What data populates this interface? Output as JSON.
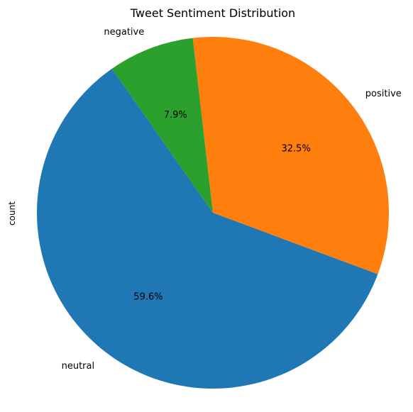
{
  "chart_data": {
    "type": "pie",
    "title": "Tweet Sentiment Distribution",
    "ylabel": "count",
    "categories": [
      "neutral",
      "positive",
      "negative"
    ],
    "values": [
      59.6,
      32.5,
      7.9
    ],
    "value_labels": [
      "59.6%",
      "32.5%",
      "7.9%"
    ],
    "colors": [
      "#1f77b4",
      "#ff7f0e",
      "#2ca02c"
    ],
    "start_angle_deg": 125,
    "direction": "counterclockwise"
  }
}
